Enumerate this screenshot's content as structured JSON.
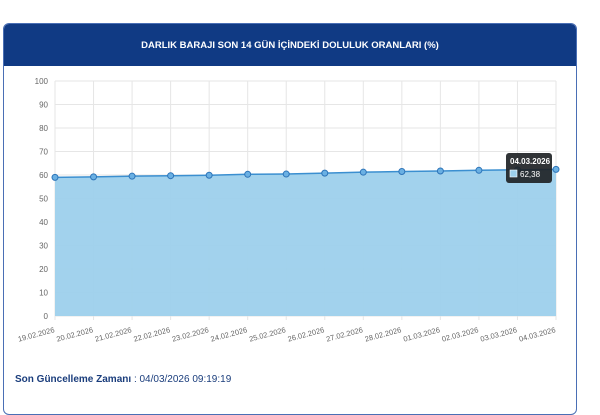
{
  "header": {
    "title": "DARLIK BARAJI SON 14 GÜN İÇİNDEKİ DOLULUK ORANLARI (%)"
  },
  "chart_data": {
    "type": "area",
    "title": "DARLIK BARAJI SON 14 GÜN İÇİNDEKİ DOLULUK ORANLARI (%)",
    "categories": [
      "19.02.2026",
      "20.02.2026",
      "21.02.2026",
      "22.02.2026",
      "23.02.2026",
      "24.02.2026",
      "25.02.2026",
      "26.02.2026",
      "27.02.2026",
      "28.02.2026",
      "01.03.2026",
      "02.03.2026",
      "03.03.2026",
      "04.03.2026"
    ],
    "values": [
      59.0,
      59.2,
      59.5,
      59.7,
      59.9,
      60.3,
      60.4,
      60.8,
      61.2,
      61.5,
      61.7,
      62.0,
      62.2,
      62.38
    ],
    "ylim": [
      0,
      100
    ],
    "yticks": [
      0,
      10,
      20,
      30,
      40,
      50,
      60,
      70,
      80,
      90,
      100
    ],
    "grid": true,
    "fill_color": "#9dd0ec",
    "line_color": "#3b8fd0",
    "tooltip": {
      "title": "04.03.2026",
      "value": "62,38"
    }
  },
  "footer": {
    "label": "Son Güncelleme Zamanı",
    "separator": ":",
    "value": "04/03/2026 09:19:19"
  }
}
